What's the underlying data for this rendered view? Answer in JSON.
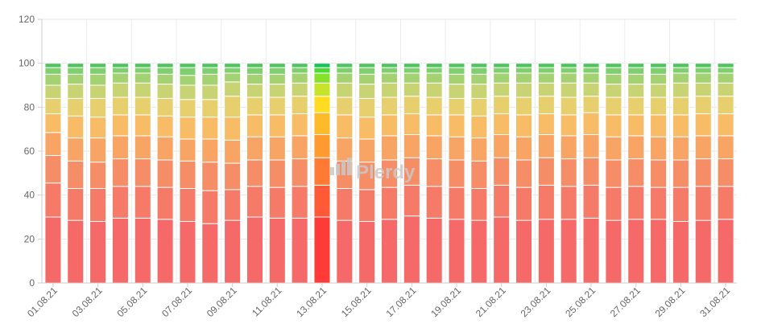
{
  "watermark": {
    "text": "Plerdy"
  },
  "chart_data": {
    "type": "bar",
    "stacked": true,
    "ylim": [
      0,
      120
    ],
    "y_ticks": [
      0,
      20,
      40,
      60,
      80,
      100,
      120
    ],
    "grid": true,
    "legend": "none",
    "categories": [
      "01.08.21",
      "02.08.21",
      "03.08.21",
      "04.08.21",
      "05.08.21",
      "06.08.21",
      "07.08.21",
      "08.08.21",
      "09.08.21",
      "10.08.21",
      "11.08.21",
      "12.08.21",
      "13.08.21",
      "14.08.21",
      "15.08.21",
      "16.08.21",
      "17.08.21",
      "18.08.21",
      "19.08.21",
      "20.08.21",
      "21.08.21",
      "22.08.21",
      "23.08.21",
      "24.08.21",
      "25.08.21",
      "26.08.21",
      "27.08.21",
      "28.08.21",
      "29.08.21",
      "30.08.21",
      "31.08.21"
    ],
    "x_tick_labels": [
      "01.08.21",
      "03.08.21",
      "05.08.21",
      "07.08.21",
      "09.08.21",
      "11.08.21",
      "13.08.21",
      "15.08.21",
      "17.08.21",
      "19.08.21",
      "21.08.21",
      "23.08.21",
      "25.08.21",
      "27.08.21",
      "29.08.21",
      "31.08.21"
    ],
    "highlighted_category": "13.08.21",
    "boundaries": [
      [
        30,
        45.5,
        58,
        68.5,
        77,
        84,
        90,
        95,
        98,
        100
      ],
      [
        28.5,
        43,
        55.5,
        66,
        76,
        84,
        90.5,
        95,
        98,
        100
      ],
      [
        28,
        43,
        55,
        66,
        75.5,
        84,
        90,
        95,
        98,
        100
      ],
      [
        29.5,
        44,
        56.5,
        67,
        76.5,
        84.5,
        91,
        95.5,
        98,
        100
      ],
      [
        29.5,
        44,
        56.5,
        67,
        76.5,
        84.5,
        91,
        95.5,
        98,
        100
      ],
      [
        29,
        43.5,
        56,
        66.5,
        76,
        84,
        90.5,
        95,
        98,
        100
      ],
      [
        28,
        43,
        55.5,
        65.5,
        75.5,
        83.5,
        90,
        94.5,
        98,
        100
      ],
      [
        27,
        42,
        55,
        65.5,
        75.5,
        83.5,
        90,
        95,
        98,
        100
      ],
      [
        28.5,
        42.5,
        54.5,
        65,
        75.5,
        85,
        91.5,
        95.5,
        98,
        100
      ],
      [
        30,
        44,
        56,
        66.5,
        76.5,
        84.5,
        90.5,
        95,
        98,
        100
      ],
      [
        29.5,
        43.5,
        56,
        66.5,
        76.5,
        84.5,
        90.5,
        95,
        98,
        100
      ],
      [
        29.5,
        44,
        56.5,
        67,
        77,
        85,
        91,
        95.5,
        98,
        100
      ],
      [
        30,
        44.5,
        57,
        67.5,
        77.5,
        85,
        91,
        95.5,
        98,
        100
      ],
      [
        28.5,
        43,
        55.5,
        66,
        76.5,
        84.5,
        91,
        95.5,
        98,
        100
      ],
      [
        28,
        42.5,
        55,
        65.5,
        75.5,
        84,
        90.5,
        95,
        98,
        100
      ],
      [
        29,
        43.5,
        56,
        67,
        76.5,
        84.5,
        91,
        95.5,
        98,
        100
      ],
      [
        30.5,
        44.5,
        57,
        67.5,
        77,
        85,
        91,
        95.5,
        98,
        100
      ],
      [
        29.5,
        44,
        56.5,
        67,
        76.5,
        84.5,
        91,
        95.5,
        98,
        100
      ],
      [
        29,
        43.5,
        56,
        66.5,
        76.5,
        84,
        90.5,
        95,
        98,
        100
      ],
      [
        28.5,
        43,
        55.5,
        66,
        76,
        84,
        90.5,
        95,
        98,
        100
      ],
      [
        30,
        44.5,
        57,
        67.5,
        77,
        85,
        91,
        95.5,
        98,
        100
      ],
      [
        28.5,
        43.5,
        56,
        66.5,
        76.5,
        84.5,
        91,
        95.5,
        98,
        100
      ],
      [
        29,
        44.5,
        57,
        67.5,
        77,
        85,
        91,
        95.5,
        98,
        100
      ],
      [
        29,
        44,
        56.5,
        67,
        76.5,
        84.5,
        91,
        95.5,
        98,
        100
      ],
      [
        29.5,
        44.5,
        57,
        67.5,
        77.5,
        85,
        91,
        95.5,
        98,
        100
      ],
      [
        28.5,
        43.5,
        56,
        66.5,
        76.5,
        84.5,
        90.5,
        95,
        98,
        100
      ],
      [
        29,
        44,
        56.5,
        67,
        76.5,
        84.5,
        90.5,
        95,
        98,
        100
      ],
      [
        29,
        43.5,
        56,
        66.5,
        76.5,
        84.5,
        90.5,
        95,
        98,
        100
      ],
      [
        28,
        43.5,
        56,
        66.5,
        76.5,
        84.5,
        91,
        95.5,
        98,
        100
      ],
      [
        28.5,
        44,
        56.5,
        67,
        77,
        85,
        91,
        95.5,
        98,
        100
      ],
      [
        29,
        44,
        56.5,
        67,
        77,
        85,
        91,
        95.5,
        98,
        100
      ]
    ],
    "segment_colors": [
      "#f56969",
      "#f57a68",
      "#f58d66",
      "#f7a465",
      "#f8bc67",
      "#e6cf6c",
      "#c8d474",
      "#a4d272",
      "#80cf6e",
      "#4fc45f"
    ],
    "highlight_colors": [
      "#ff3a37",
      "#ff5935",
      "#ff7a33",
      "#ff9a2f",
      "#ffba2a",
      "#ffdc22",
      "#c6e52a",
      "#86e02e",
      "#4ed83a",
      "#13c653"
    ]
  }
}
